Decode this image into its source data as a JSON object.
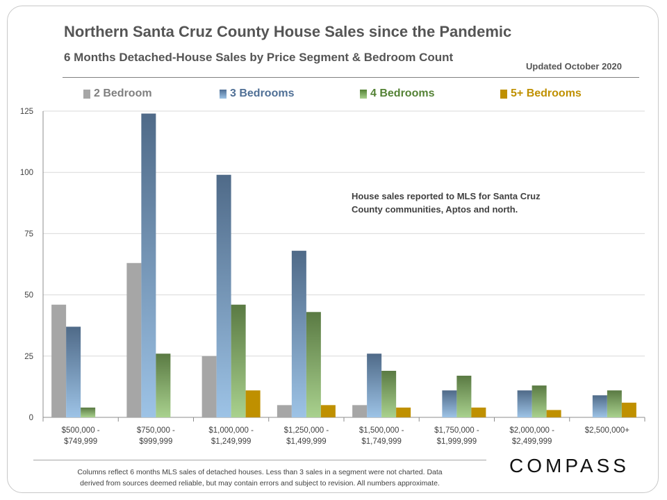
{
  "header": {
    "title": "Northern Santa Cruz County House Sales since the Pandemic",
    "subtitle": "6 Months Detached-House  Sales by Price Segment & Bedroom Count",
    "updated": "Updated October 2020"
  },
  "annotation": {
    "line1": "House sales reported to MLS for Santa Cruz",
    "line2": "County communities, Aptos and north."
  },
  "footnote": {
    "line1": "Columns reflect 6 months MLS sales of detached houses.  Less than 3 sales in a segment were not charted. Data",
    "line2": "derived from sources deemed reliable, but may contain errors and subject to revision. All numbers approximate."
  },
  "logo": "COMPASS",
  "chart_data": {
    "type": "bar",
    "title": "Northern Santa Cruz County House Sales since the Pandemic",
    "subtitle": "6 Months Detached-House  Sales by Price Segment & Bedroom Count",
    "xlabel": "",
    "ylabel": "",
    "ylim": [
      0,
      125
    ],
    "yticks": [
      "0",
      "25",
      "50",
      "75",
      "100",
      "125"
    ],
    "ytick_values": [
      0,
      25,
      50,
      75,
      100,
      125
    ],
    "grid": true,
    "legend_position": "top",
    "categories": [
      [
        "$500,000 -",
        "$749,999"
      ],
      [
        "$750,000 -",
        "$999,999"
      ],
      [
        "$1,000,000 -",
        "$1,249,999"
      ],
      [
        "$1,250,000 -",
        "$1,499,999"
      ],
      [
        "$1,500,000 -",
        "$1,749,999"
      ],
      [
        "$1,750,000 -",
        "$1,999,999"
      ],
      [
        "$2,000,000 -",
        "$2,499,999"
      ],
      [
        "$2,500,000+"
      ]
    ],
    "series": [
      {
        "name": "2 Bedroom",
        "color": "#a6a6a6",
        "label_color": "#7f7f7f",
        "values": [
          46,
          63,
          25,
          5,
          5,
          null,
          null,
          null
        ]
      },
      {
        "name": "3 Bedrooms",
        "color": "#6d8fb3",
        "label_color": "#4f6f95",
        "values": [
          37,
          124,
          99,
          68,
          26,
          11,
          11,
          9
        ]
      },
      {
        "name": "4 Bedrooms",
        "color": "#8cb369",
        "label_color": "#548235",
        "values": [
          4,
          26,
          46,
          43,
          19,
          17,
          13,
          11
        ]
      },
      {
        "name": "5+ Bedrooms",
        "color": "#bf9000",
        "label_color": "#bf9000",
        "values": [
          null,
          null,
          11,
          5,
          4,
          4,
          3,
          6
        ]
      }
    ]
  }
}
